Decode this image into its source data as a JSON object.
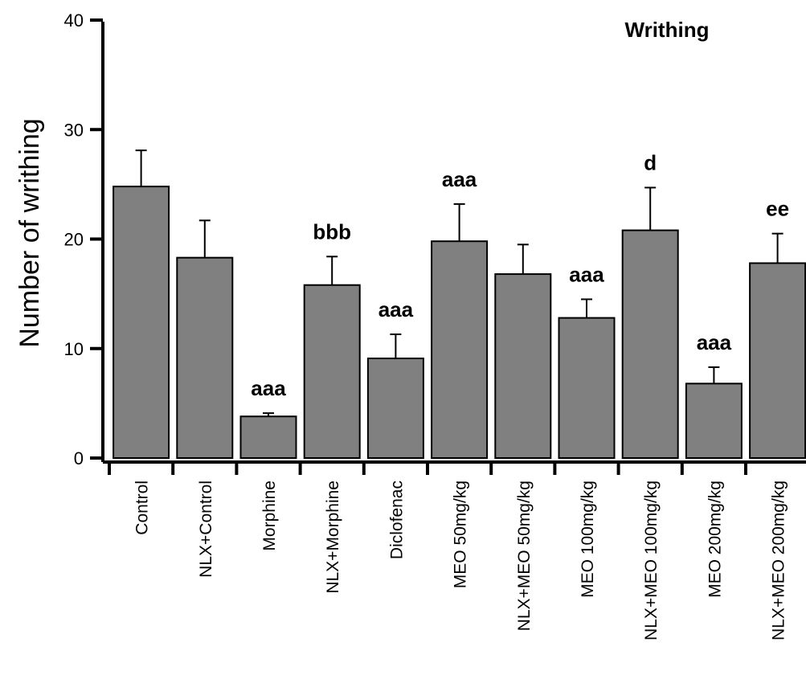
{
  "chart_data": {
    "type": "bar",
    "title": "Writhing",
    "ylabel": "Number of writhing",
    "xlabel": "",
    "ylim": [
      0,
      40
    ],
    "yticks": [
      0,
      10,
      20,
      30,
      40
    ],
    "grid": false,
    "bar_color": "#808080",
    "categories": [
      "Control",
      "NLX+Control",
      "Morphine",
      "NLX+Morphine",
      "Diclofenac",
      "MEO 50mg/kg",
      "NLX+MEO 50mg/kg",
      "MEO 100mg/kg",
      "NLX+MEO 100mg/kg",
      "MEO 200mg/kg",
      "NLX+MEO 200mg/kg"
    ],
    "values": [
      24.8,
      18.3,
      3.8,
      15.8,
      9.1,
      19.8,
      16.8,
      12.8,
      20.8,
      6.8,
      17.8
    ],
    "errors": [
      3.3,
      3.4,
      0.3,
      2.6,
      2.2,
      3.4,
      2.7,
      1.7,
      3.9,
      1.5,
      2.7
    ],
    "annotations": [
      "",
      "",
      "aaa",
      "bbb",
      "aaa",
      "aaa",
      "",
      "aaa",
      "d",
      "aaa",
      "ee"
    ]
  }
}
